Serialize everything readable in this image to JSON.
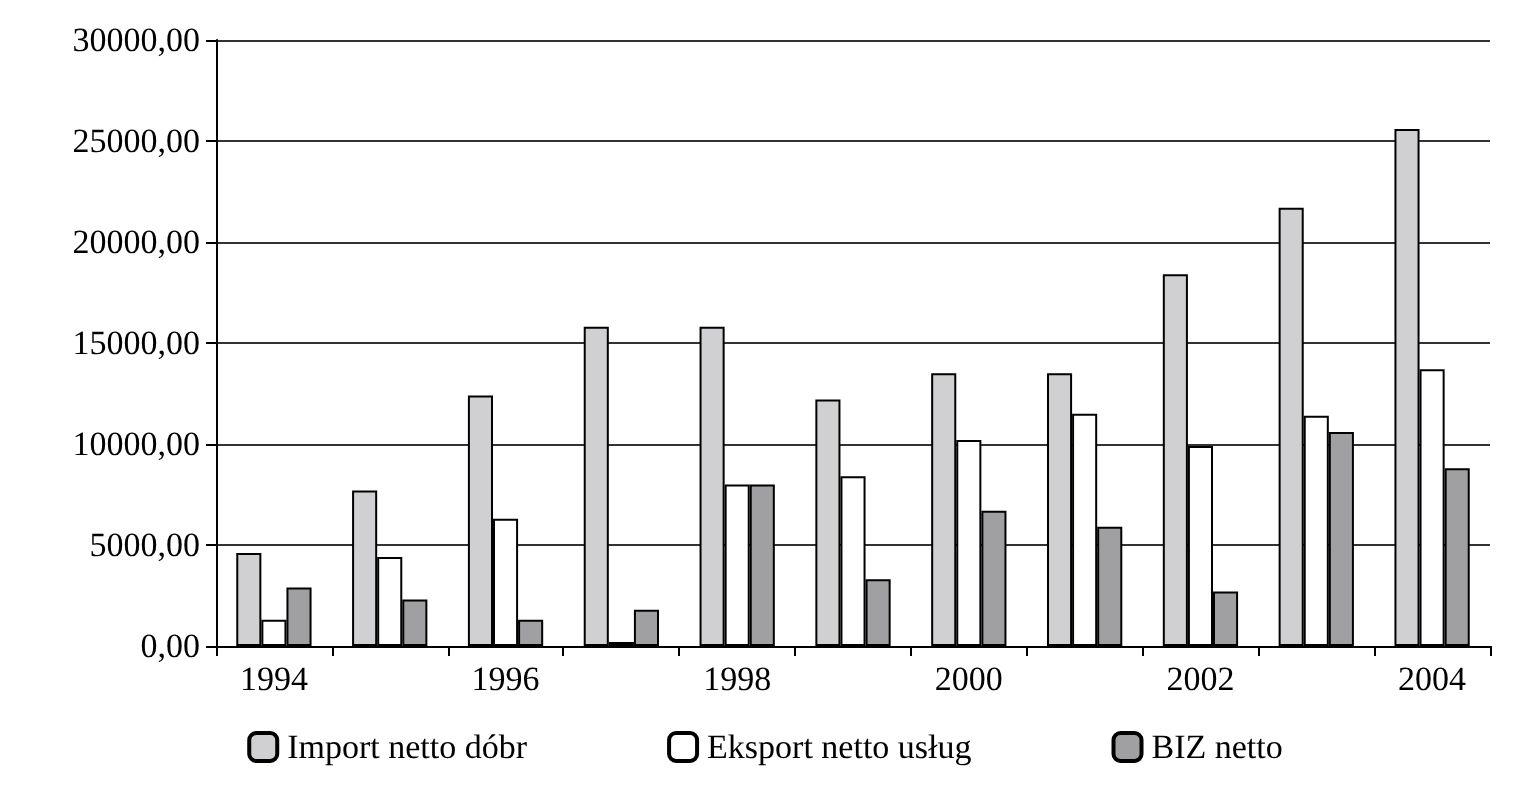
{
  "chart_data": {
    "type": "bar",
    "categories": [
      "1994",
      null,
      "1996",
      null,
      "1998",
      null,
      "2000",
      null,
      "2002",
      null,
      "2004"
    ],
    "series": [
      {
        "name": "Import netto dóbr",
        "color": "#d0d0d2",
        "values": [
          4600,
          7700,
          12400,
          15800,
          15800,
          12200,
          13500,
          13500,
          18400,
          21700,
          25600
        ]
      },
      {
        "name": "Eksport netto usług",
        "color": "#ffffff",
        "values": [
          1300,
          4400,
          6300,
          200,
          8000,
          8400,
          10200,
          11500,
          9900,
          11400,
          13700
        ]
      },
      {
        "name": "BIZ netto",
        "color": "#a0a0a2",
        "values": [
          2900,
          2300,
          1300,
          1800,
          8000,
          3300,
          6700,
          5900,
          2700,
          10600,
          8800
        ]
      }
    ],
    "ylim": [
      0,
      30000
    ],
    "yticks": [
      {
        "value": 0,
        "label": "0,00"
      },
      {
        "value": 5000,
        "label": "5000,00"
      },
      {
        "value": 10000,
        "label": "10000,00"
      },
      {
        "value": 15000,
        "label": "15000,00"
      },
      {
        "value": 20000,
        "label": "20000,00"
      },
      {
        "value": 25000,
        "label": "25000,00"
      },
      {
        "value": 30000,
        "label": "30000,00"
      }
    ],
    "grid": "y",
    "legend": "bottom"
  }
}
